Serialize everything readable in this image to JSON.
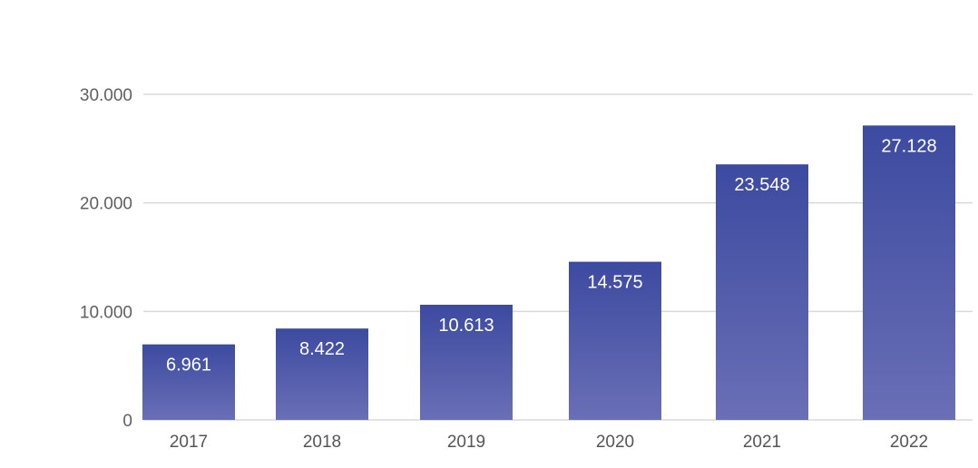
{
  "chart_data": {
    "type": "bar",
    "categories": [
      "2017",
      "2018",
      "2019",
      "2020",
      "2021",
      "2022"
    ],
    "values": [
      6961,
      8422,
      10613,
      14575,
      23548,
      27128
    ],
    "value_labels": [
      "6.961",
      "8.422",
      "10.613",
      "14.575",
      "23.548",
      "27.128"
    ],
    "yticks": [
      0,
      10000,
      20000,
      30000
    ],
    "ytick_labels": [
      "0",
      "10.000",
      "20.000",
      "30.000"
    ],
    "ylim": [
      0,
      30000
    ],
    "grid": true,
    "legend": "none",
    "bar_color_top": "#3c4aa0",
    "bar_color_bottom": "#6a6fb6",
    "grid_color": "#d9d9d9",
    "title": "",
    "xlabel": "",
    "ylabel": ""
  }
}
